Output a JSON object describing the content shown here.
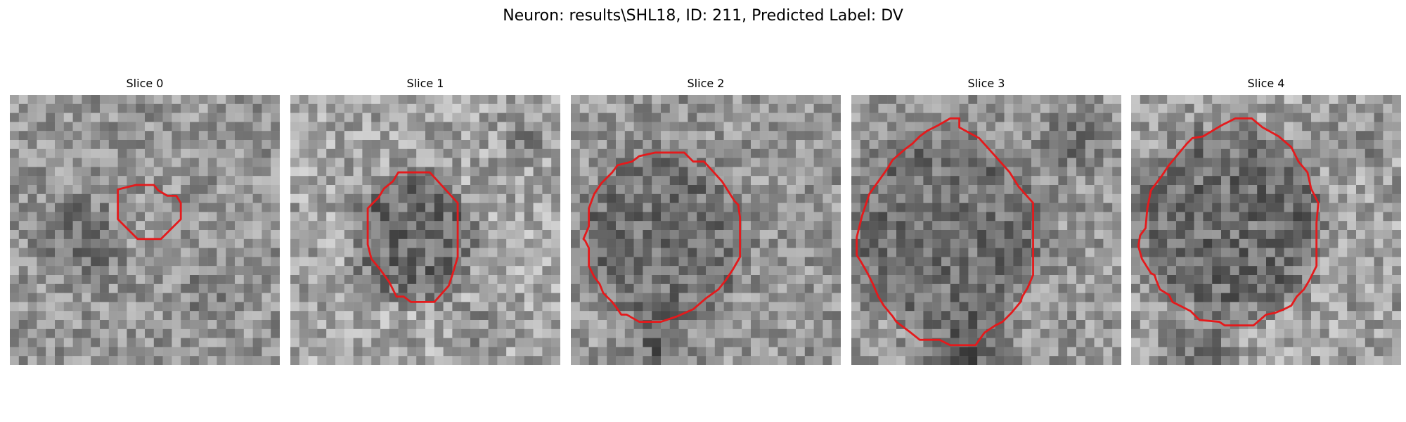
{
  "figure": {
    "title": "Neuron: results\\SHL18, ID: 211, Predicted Label: DV"
  },
  "colors": {
    "contour": "#e41a1c",
    "background": "#ffffff"
  },
  "panels": [
    {
      "title": "Slice 0",
      "contour": [
        [
          14,
          10
        ],
        [
          16,
          10
        ],
        [
          16.5,
          10.6
        ],
        [
          17.5,
          11.2
        ],
        [
          18.5,
          11.2
        ],
        [
          19,
          12
        ],
        [
          19,
          13.8
        ],
        [
          16.8,
          16
        ],
        [
          14.2,
          16
        ],
        [
          12,
          13.8
        ],
        [
          12,
          10.5
        ]
      ]
    },
    {
      "title": "Slice 1",
      "contour": [
        [
          12,
          8.6
        ],
        [
          15.5,
          8.6
        ],
        [
          18.6,
          12
        ],
        [
          18.6,
          18
        ],
        [
          18,
          20
        ],
        [
          17.6,
          21.2
        ],
        [
          16,
          23
        ],
        [
          13.4,
          23
        ],
        [
          12.6,
          22.4
        ],
        [
          11.8,
          22.4
        ],
        [
          11,
          20.8
        ],
        [
          10,
          19.4
        ],
        [
          9,
          18.2
        ],
        [
          8.6,
          16.6
        ],
        [
          8.6,
          14.4
        ],
        [
          8.6,
          12.6
        ],
        [
          9.8,
          11.4
        ],
        [
          10.4,
          10.4
        ],
        [
          11.4,
          9.6
        ]
      ]
    },
    {
      "title": "Slice 2",
      "contour": [
        [
          9.8,
          6.4
        ],
        [
          12.6,
          6.4
        ],
        [
          13.6,
          7.4
        ],
        [
          14.8,
          7.4
        ],
        [
          16.8,
          9.6
        ],
        [
          18.2,
          11.8
        ],
        [
          18.6,
          12.2
        ],
        [
          18.8,
          13.6
        ],
        [
          18.8,
          18
        ],
        [
          18,
          19.4
        ],
        [
          17.2,
          20.6
        ],
        [
          16.4,
          21.6
        ],
        [
          15,
          22.6
        ],
        [
          13.6,
          23.8
        ],
        [
          11.8,
          24.6
        ],
        [
          10,
          25.2
        ],
        [
          7.6,
          25.2
        ],
        [
          6.2,
          24.4
        ],
        [
          5.6,
          24.4
        ],
        [
          5.2,
          23.8
        ],
        [
          4.6,
          23
        ],
        [
          3.6,
          22
        ],
        [
          3.2,
          21
        ],
        [
          2.6,
          20.2
        ],
        [
          2,
          19
        ],
        [
          2,
          17
        ],
        [
          1.6,
          16.2
        ],
        [
          1.4,
          16
        ],
        [
          2,
          14.6
        ],
        [
          2,
          12.6
        ],
        [
          2.6,
          11
        ],
        [
          3.4,
          9.8
        ],
        [
          4.6,
          8.6
        ],
        [
          5.2,
          7.8
        ],
        [
          6.8,
          7.4
        ],
        [
          7.6,
          6.8
        ],
        [
          9.4,
          6.4
        ]
      ]
    },
    {
      "title": "Slice 3",
      "contour": [
        [
          12,
          3.6
        ],
        [
          14.2,
          4.8
        ],
        [
          16,
          6.8
        ],
        [
          17.6,
          8.6
        ],
        [
          18.6,
          10.2
        ],
        [
          20.2,
          12
        ],
        [
          20.2,
          20
        ],
        [
          19.6,
          21.4
        ],
        [
          19,
          22.4
        ],
        [
          18.8,
          23
        ],
        [
          17.8,
          24.2
        ],
        [
          16.8,
          25.2
        ],
        [
          16,
          25.6
        ],
        [
          14.8,
          26.4
        ],
        [
          13.8,
          27.8
        ],
        [
          11,
          27.8
        ],
        [
          9.8,
          27.2
        ],
        [
          7.6,
          27.2
        ],
        [
          6.6,
          26.4
        ],
        [
          5,
          25.2
        ],
        [
          4.6,
          24.6
        ],
        [
          3.6,
          23.4
        ],
        [
          3,
          22.4
        ],
        [
          2.4,
          21
        ],
        [
          1.8,
          19.8
        ],
        [
          1,
          18.4
        ],
        [
          0.6,
          17.8
        ],
        [
          0.6,
          15.8
        ],
        [
          1.2,
          13.4
        ],
        [
          2,
          11
        ],
        [
          3,
          9.6
        ],
        [
          4,
          8.2
        ],
        [
          4.6,
          7.2
        ],
        [
          6,
          6
        ],
        [
          6.8,
          5.4
        ],
        [
          7.6,
          4.6
        ],
        [
          8.4,
          4
        ],
        [
          9.6,
          3.4
        ],
        [
          11,
          2.6
        ],
        [
          12,
          2.6
        ]
      ]
    },
    {
      "title": "Slice 4",
      "contour": [
        [
          13.4,
          2.6
        ],
        [
          14.6,
          3.6
        ],
        [
          16.4,
          4.6
        ],
        [
          17.8,
          5.8
        ],
        [
          18.6,
          7.4
        ],
        [
          19.6,
          8.6
        ],
        [
          20,
          10.4
        ],
        [
          20.8,
          12
        ],
        [
          20.6,
          14.2
        ],
        [
          20.6,
          19
        ],
        [
          19.8,
          20.6
        ],
        [
          19.2,
          21.6
        ],
        [
          18.4,
          22.4
        ],
        [
          17.8,
          23.4
        ],
        [
          17,
          23.8
        ],
        [
          16,
          24.2
        ],
        [
          15,
          24.4
        ],
        [
          13.6,
          25.6
        ],
        [
          10.4,
          25.6
        ],
        [
          9.8,
          25.2
        ],
        [
          7.6,
          25
        ],
        [
          6.6,
          24
        ],
        [
          5.4,
          23.4
        ],
        [
          4.6,
          23
        ],
        [
          4.2,
          22.2
        ],
        [
          3.2,
          21.6
        ],
        [
          2.8,
          20.6
        ],
        [
          2.6,
          20
        ],
        [
          2.2,
          19.8
        ],
        [
          1.2,
          18.2
        ],
        [
          0.8,
          16.8
        ],
        [
          1,
          15.6
        ],
        [
          1.6,
          14.8
        ],
        [
          1.8,
          12.6
        ],
        [
          2.2,
          10.6
        ],
        [
          3.4,
          9
        ],
        [
          4.2,
          7.8
        ],
        [
          5.2,
          6.6
        ],
        [
          6.2,
          5.4
        ],
        [
          6.8,
          4.8
        ],
        [
          8,
          4.6
        ],
        [
          10,
          3.4
        ],
        [
          11.6,
          2.6
        ],
        [
          13,
          2.6
        ]
      ]
    }
  ]
}
